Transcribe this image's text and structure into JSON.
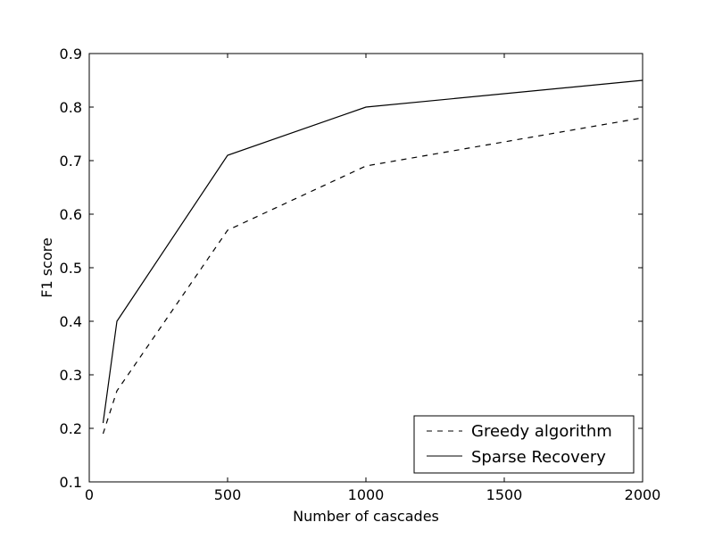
{
  "chart_data": {
    "type": "line",
    "title": "",
    "xlabel": "Number of cascades",
    "ylabel": "F1 score",
    "xlim": [
      0,
      2000
    ],
    "ylim": [
      0.1,
      0.9
    ],
    "xticks": [
      "0",
      "500",
      "1000",
      "1500",
      "2000"
    ],
    "yticks": [
      "0.1",
      "0.2",
      "0.3",
      "0.4",
      "0.5",
      "0.6",
      "0.7",
      "0.8",
      "0.9"
    ],
    "grid": false,
    "legend_position": "lower-right",
    "x": [
      50,
      100,
      500,
      1000,
      2000
    ],
    "series": [
      {
        "name": "Greedy algorithm",
        "style": "dashed",
        "color": "#000000",
        "values": [
          0.19,
          0.27,
          0.57,
          0.69,
          0.78
        ]
      },
      {
        "name": "Sparse Recovery",
        "style": "solid",
        "color": "#000000",
        "values": [
          0.21,
          0.4,
          0.71,
          0.8,
          0.85
        ]
      }
    ]
  }
}
